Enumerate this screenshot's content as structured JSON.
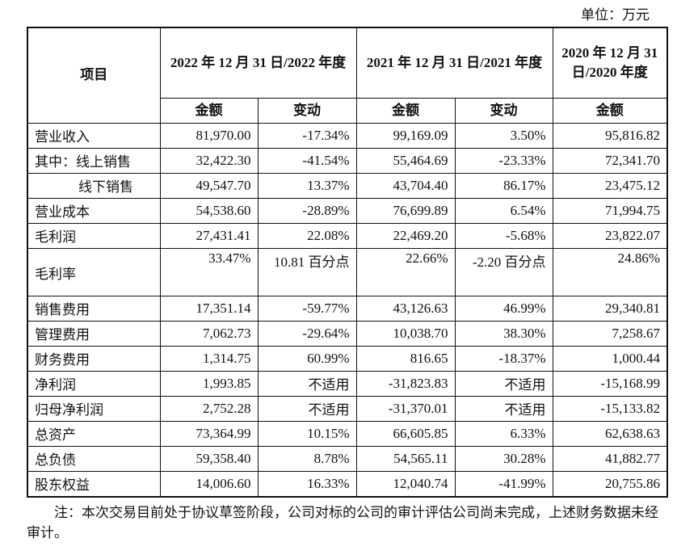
{
  "unit": "单位：万元",
  "header": {
    "item": "项目",
    "period_2022": "2022 年 12 月 31 日/2022 年度",
    "period_2021": "2021 年 12 月 31 日/2021 年度",
    "period_2020": "2020 年 12 月 31 日/2020 年度",
    "amount": "金额",
    "change": "变动"
  },
  "rows": [
    {
      "label": "营业收入",
      "a2022": "81,970.00",
      "c2022": "-17.34%",
      "a2021": "99,169.09",
      "c2021": "3.50%",
      "a2020": "95,816.82"
    },
    {
      "label": "其中：线上销售",
      "a2022": "32,422.30",
      "c2022": "-41.54%",
      "a2021": "55,464.69",
      "c2021": "-23.33%",
      "a2020": "72,341.70"
    },
    {
      "label": "线下销售",
      "a2022": "49,547.70",
      "c2022": "13.37%",
      "a2021": "43,704.40",
      "c2021": "86.17%",
      "a2020": "23,475.12"
    },
    {
      "label": "营业成本",
      "a2022": "54,538.60",
      "c2022": "-28.89%",
      "a2021": "76,699.89",
      "c2021": "6.54%",
      "a2020": "71,994.75"
    },
    {
      "label": "毛利润",
      "a2022": "27,431.41",
      "c2022": "22.08%",
      "a2021": "22,469.20",
      "c2021": "-5.68%",
      "a2020": "23,822.07"
    },
    {
      "label": "毛利率",
      "a2022": "33.47%",
      "c2022": "10.81 百分点",
      "a2021": "22.66%",
      "c2021": "-2.20 百分点",
      "a2020": "24.86%"
    },
    {
      "label": "销售费用",
      "a2022": "17,351.14",
      "c2022": "-59.77%",
      "a2021": "43,126.63",
      "c2021": "46.99%",
      "a2020": "29,340.81"
    },
    {
      "label": "管理费用",
      "a2022": "7,062.73",
      "c2022": "-29.64%",
      "a2021": "10,038.70",
      "c2021": "38.30%",
      "a2020": "7,258.67"
    },
    {
      "label": "财务费用",
      "a2022": "1,314.75",
      "c2022": "60.99%",
      "a2021": "816.65",
      "c2021": "-18.37%",
      "a2020": "1,000.44"
    },
    {
      "label": "净利润",
      "a2022": "1,993.85",
      "c2022": "不适用",
      "a2021": "-31,823.83",
      "c2021": "不适用",
      "a2020": "-15,168.99"
    },
    {
      "label": "归母净利润",
      "a2022": "2,752.28",
      "c2022": "不适用",
      "a2021": "-31,370.01",
      "c2021": "不适用",
      "a2020": "-15,133.82"
    },
    {
      "label": "总资产",
      "a2022": "73,364.99",
      "c2022": "10.15%",
      "a2021": "66,605.85",
      "c2021": "6.33%",
      "a2020": "62,638.63"
    },
    {
      "label": "总负债",
      "a2022": "59,358.40",
      "c2022": "8.78%",
      "a2021": "54,565.11",
      "c2021": "30.28%",
      "a2020": "41,882.77"
    },
    {
      "label": "股东权益",
      "a2022": "14,006.60",
      "c2022": "16.33%",
      "a2021": "12,040.74",
      "c2021": "-41.99%",
      "a2020": "20,755.86"
    }
  ],
  "note": "注：本次交易目前处于协议草签阶段，公司对标的公司的审计评估公司尚未完成，上述财务数据未经审计。"
}
